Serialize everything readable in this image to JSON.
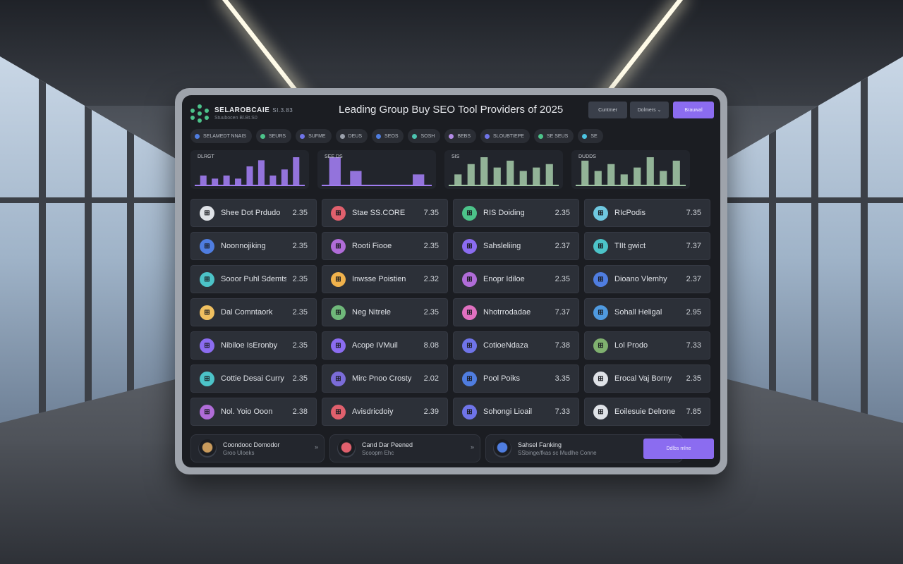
{
  "header": {
    "brand_name": "SELAROBCAIE",
    "brand_version": "SI.3.83",
    "brand_sub": "Stuubocen Bl.Bt.S0",
    "title": "Leading Group Buy SEO Tool Providers of 2025",
    "buttons": [
      "Cuntmer",
      "Dolmers ⌄",
      "Brauwal"
    ]
  },
  "filters": [
    {
      "label": "SELAMEDT NNAIS",
      "color": "#4f7de0"
    },
    {
      "label": "SEURS",
      "color": "#4cc38a"
    },
    {
      "label": "SUFME",
      "color": "#6f74e8"
    },
    {
      "label": "DEUS",
      "color": "#9aa0ab"
    },
    {
      "label": "SEOS",
      "color": "#4f7de0"
    },
    {
      "label": "SOSH",
      "color": "#4cc3b0"
    },
    {
      "label": "BEBS",
      "color": "#b38be6"
    },
    {
      "label": "SLOUBTIEPE",
      "color": "#6f74e8"
    },
    {
      "label": "SE SEUS",
      "color": "#4cc38a"
    },
    {
      "label": "SE",
      "color": "#4cc3e0"
    }
  ],
  "chart_data": [
    {
      "type": "bar",
      "title": "DLRGT",
      "color": "#a07cf0",
      "values": [
        3,
        2,
        3,
        2,
        6,
        8,
        3,
        5,
        9
      ]
    },
    {
      "type": "bar",
      "title": "SEE DS",
      "color": "#a07cf0",
      "values": [
        8,
        4,
        0,
        0,
        3
      ]
    },
    {
      "type": "bar",
      "title": "SIS",
      "color": "#9fc3a3",
      "values": [
        3,
        6,
        8,
        5,
        7,
        4,
        5,
        6
      ]
    },
    {
      "type": "bar",
      "title": "DUDDS",
      "color": "#9fc3a3",
      "values": [
        7,
        4,
        6,
        3,
        5,
        8,
        4,
        7
      ]
    }
  ],
  "providers": [
    {
      "name": "Shee Dot Prdudo",
      "score": "2.35",
      "color": "#dfe2e7"
    },
    {
      "name": "Stae SS.CORE",
      "score": "7.35",
      "color": "#e0606d"
    },
    {
      "name": "RIS Doiding",
      "score": "2.35",
      "color": "#4cc38a"
    },
    {
      "name": "RIcPodis",
      "score": "7.35",
      "color": "#6fc8e0"
    },
    {
      "name": "Noonnojiking",
      "score": "2.35",
      "color": "#4f7de0"
    },
    {
      "name": "Rooti Fiooe",
      "score": "2.35",
      "color": "#b06cd8"
    },
    {
      "name": "Sahsleliing",
      "score": "2.37",
      "color": "#8b6cf0"
    },
    {
      "name": "TIIt gwict",
      "score": "7.37",
      "color": "#4cc3c8"
    },
    {
      "name": "Sooor Puhl Sdemts",
      "score": "2.35",
      "color": "#4cc3c8"
    },
    {
      "name": "Inwsse Poistien",
      "score": "2.32",
      "color": "#f0b24c"
    },
    {
      "name": "Enopr Idiloe",
      "score": "2.35",
      "color": "#b06cd8"
    },
    {
      "name": "Dioano Vlemhy",
      "score": "2.37",
      "color": "#4f7de0"
    },
    {
      "name": "Dal Comntaork",
      "score": "2.35",
      "color": "#f0c060"
    },
    {
      "name": "Neg Nitrele",
      "score": "2.35",
      "color": "#6fb87a"
    },
    {
      "name": "Nhotrrodadae",
      "score": "7.37",
      "color": "#e070c0"
    },
    {
      "name": "Sohall Heligal",
      "score": "2.95",
      "color": "#4f9ae0"
    },
    {
      "name": "Nibiloe IsEronby",
      "score": "2.35",
      "color": "#8b6cf0"
    },
    {
      "name": "Acope IVMuil",
      "score": "8.08",
      "color": "#8b6cf0"
    },
    {
      "name": "CotioeNdaza",
      "score": "7.38",
      "color": "#6f74e8"
    },
    {
      "name": "Lol Prodo",
      "score": "7.33",
      "color": "#7fb06f"
    },
    {
      "name": "Cottie Desai Curry",
      "score": "2.35",
      "color": "#4cc3c8"
    },
    {
      "name": "Mirc Pnoo Crosty",
      "score": "2.02",
      "color": "#7b6cd8"
    },
    {
      "name": "Pool Poiks",
      "score": "3.35",
      "color": "#4f7de0"
    },
    {
      "name": "Erocal Vaj Borny",
      "score": "2.35",
      "color": "#dfe2e7"
    },
    {
      "name": "Nol. Yoio Ooon",
      "score": "2.38",
      "color": "#b06cd8"
    },
    {
      "name": "Avisdricdoiy",
      "score": "2.39",
      "color": "#e0606d"
    },
    {
      "name": "Sohongi Lioail",
      "score": "7.33",
      "color": "#6f74e8"
    },
    {
      "name": "Eoilesuie Delrone",
      "score": "7.85",
      "color": "#dfe2e7"
    }
  ],
  "footer": {
    "cards": [
      {
        "title": "Coondooc Domodor",
        "sub": "Groo Uloeks",
        "chev": "»",
        "color": "#c89a5c"
      },
      {
        "title": "Cand Dar Peened",
        "sub": "Scoopm Ehc",
        "chev": "»",
        "color": "#e0606d"
      },
      {
        "title": "Sahsel Fanking",
        "sub": "SSbinge/fkas sc Mudlhe Conne",
        "chev": "»",
        "color": "#4f7de0"
      }
    ],
    "cta": "Ddlbs mlne"
  }
}
